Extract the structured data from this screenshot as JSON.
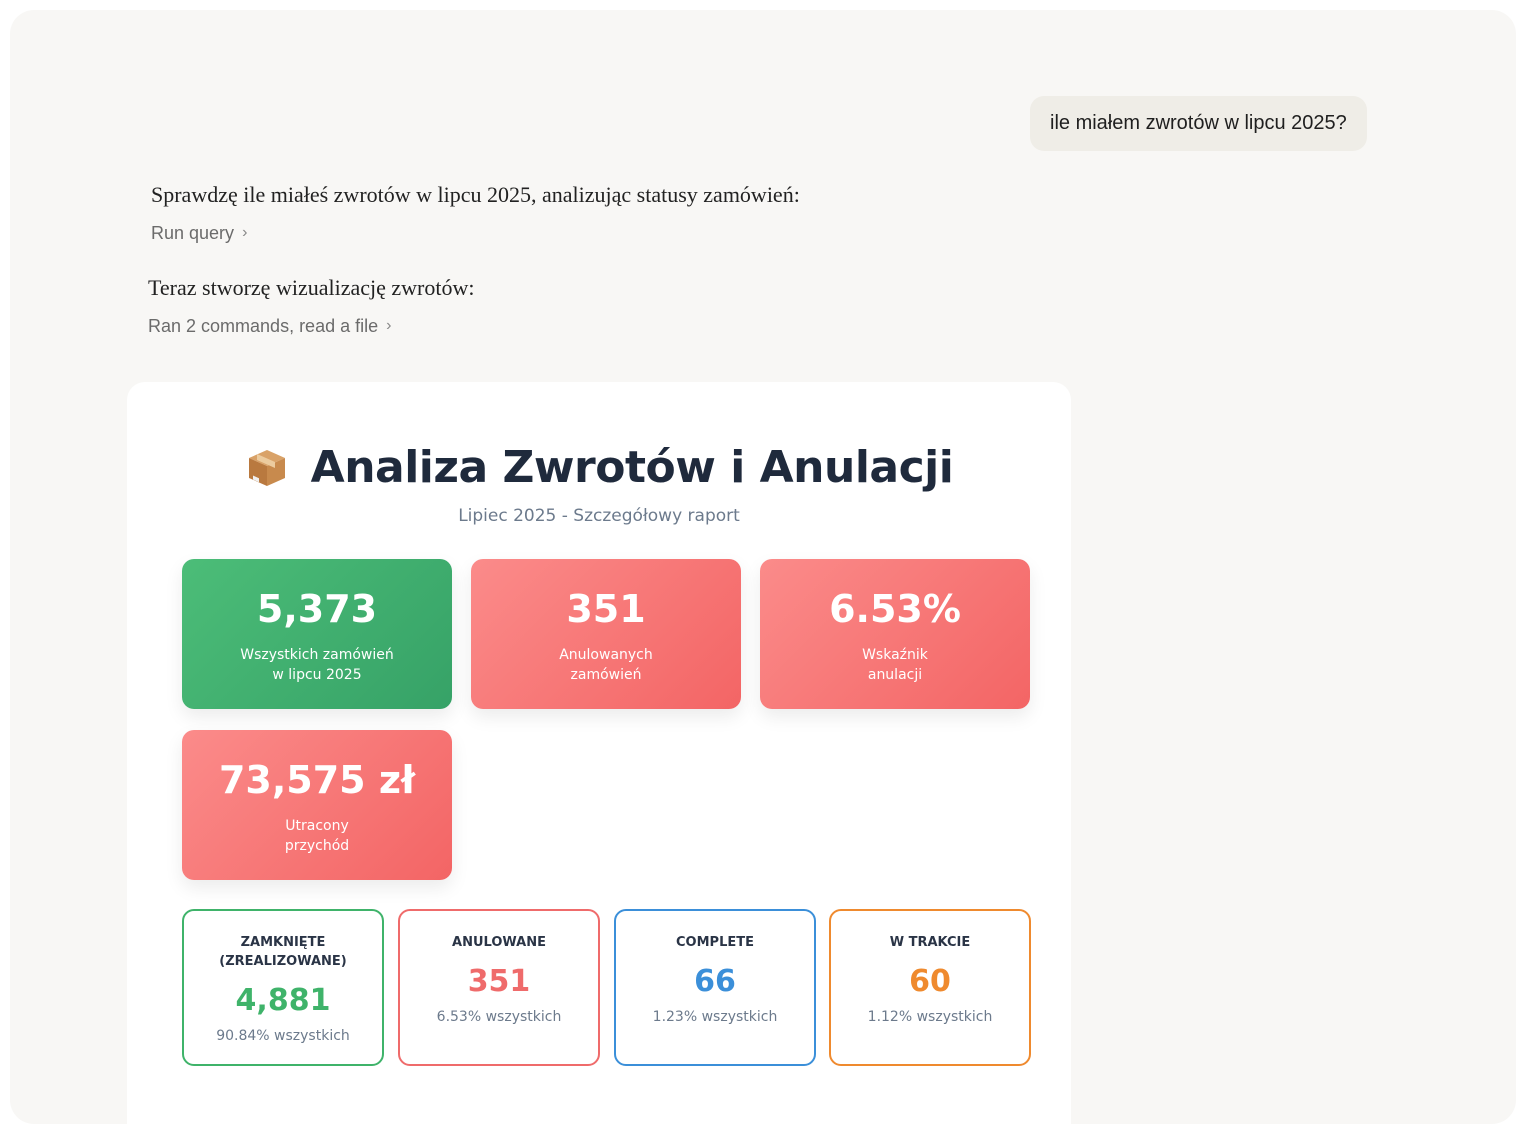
{
  "conversation": {
    "user_message": "ile miałem zwrotów w lipcu 2025?",
    "assistant_line1": "Sprawdzę ile miałeś zwrotów w lipcu 2025, analizując statusy zamówień:",
    "tool1_label": "Run query",
    "assistant_line2": "Teraz stworzę wizualizację zwrotów:",
    "tool2_label": "Ran 2 commands, read a file"
  },
  "report": {
    "icon": "package-box-icon",
    "title": "Analiza Zwrotów i Anulacji",
    "subtitle": "Lipiec 2025 - Szczegółowy raport",
    "stats": [
      {
        "value": "5,373",
        "label_line1": "Wszystkich zamówień",
        "label_line2": "w lipcu 2025",
        "color": "#3fae6e"
      },
      {
        "value": "351",
        "label_line1": "Anulowanych",
        "label_line2": "zamówień",
        "color": "#f57474"
      },
      {
        "value": "6.53%",
        "label_line1": "Wskaźnik",
        "label_line2": "anulacji",
        "color": "#f57474"
      },
      {
        "value": "73,575 zł",
        "label_line1": "Utracony",
        "label_line2": "przychód",
        "color": "#f57474"
      }
    ],
    "statuses": [
      {
        "label_line1": "ZAMKNIĘTE",
        "label_line2": "(ZREALIZOWANE)",
        "value": "4,881",
        "pct": "90.84% wszystkich",
        "color": "#3fb36a"
      },
      {
        "label_line1": "ANULOWANE",
        "label_line2": "",
        "value": "351",
        "pct": "6.53% wszystkich",
        "color": "#ef6b6b"
      },
      {
        "label_line1": "COMPLETE",
        "label_line2": "",
        "value": "66",
        "pct": "1.23% wszystkich",
        "color": "#3b8fd9"
      },
      {
        "label_line1": "W TRAKCIE",
        "label_line2": "",
        "value": "60",
        "pct": "1.12% wszystkich",
        "color": "#ef8a2e"
      }
    ]
  }
}
